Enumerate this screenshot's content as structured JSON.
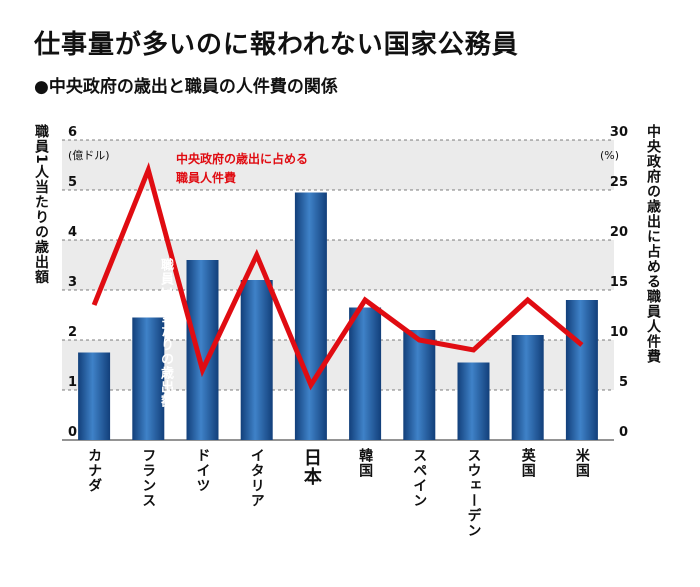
{
  "title": "仕事量が多いのに報われない国家公務員",
  "subtitle": "●中央政府の歳出と職員の人件費の関係",
  "chart_data": {
    "type": "bar",
    "categories": [
      "カナダ",
      "フランス",
      "ドイツ",
      "イタリア",
      "日本",
      "韓国",
      "スペイン",
      "スウェーデン",
      "英国",
      "米国"
    ],
    "highlight_category": "日本",
    "left_axis": {
      "label": "職員1人当たりの歳出額",
      "unit": "(億ドル)",
      "ylim": [
        0,
        6
      ],
      "ticks": [
        "0",
        "1",
        "2",
        "3",
        "4",
        "5",
        "6"
      ]
    },
    "right_axis": {
      "label": "中央政府の歳出に占める職員人件費",
      "unit": "(%)",
      "ylim": [
        0,
        30
      ],
      "ticks": [
        "0",
        "5",
        "10",
        "15",
        "20",
        "25",
        "30"
      ]
    },
    "series": [
      {
        "name": "職員1人当たりの歳出額",
        "type": "bar",
        "axis": "left",
        "color": "#1e5aa0",
        "values": [
          1.75,
          2.45,
          3.6,
          3.2,
          4.95,
          2.65,
          2.2,
          1.55,
          2.1,
          2.8
        ]
      },
      {
        "name": "中央政府の歳出に占める職員人件費",
        "type": "line",
        "axis": "right",
        "color": "#e00c12",
        "values": [
          13.5,
          27,
          7,
          18.5,
          5.5,
          14,
          10,
          9,
          14,
          9.5
        ]
      }
    ],
    "annotations": {
      "line_label": [
        "中央政府の歳出に占める",
        "職員人件費"
      ],
      "bar_label": "職員1人当たりの歳出額"
    },
    "grid": true
  }
}
